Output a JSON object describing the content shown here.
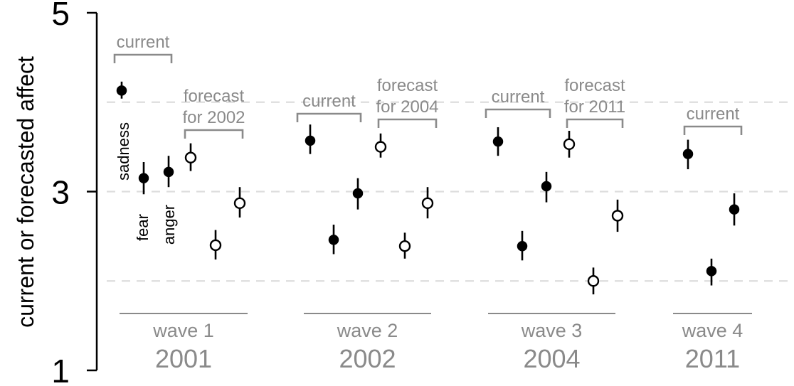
{
  "chart_data": {
    "type": "scatter",
    "title": "",
    "ylabel": "current or forecasted affect",
    "ylim": [
      1,
      5
    ],
    "yticks": [
      {
        "value": 5,
        "label": "5"
      },
      {
        "value": 3,
        "label": "3"
      },
      {
        "value": 1,
        "label": "1"
      }
    ],
    "gridlines": [
      4,
      3,
      2
    ],
    "grid": "horizontal dashed",
    "colors": {
      "current": "#000000",
      "forecast": "#ffffff",
      "annotation": "#8a8a8a",
      "grid": "#dddddd"
    },
    "emotion_labels": [
      "sadness",
      "fear",
      "anger"
    ],
    "waves": [
      {
        "wave": "wave 1",
        "year": "2001",
        "groups": [
          {
            "label": "current",
            "kind": "current",
            "points": [
              {
                "emotion": "sadness",
                "y": 4.13,
                "lo": 4.04,
                "hi": 4.23
              },
              {
                "emotion": "fear",
                "y": 3.15,
                "lo": 2.97,
                "hi": 3.33
              },
              {
                "emotion": "anger",
                "y": 3.22,
                "lo": 3.05,
                "hi": 3.4
              }
            ]
          },
          {
            "label": "forecast for 2002",
            "kind": "forecast",
            "points": [
              {
                "emotion": "sadness",
                "y": 3.38,
                "lo": 3.23,
                "hi": 3.54
              },
              {
                "emotion": "fear",
                "y": 2.4,
                "lo": 2.24,
                "hi": 2.57
              },
              {
                "emotion": "anger",
                "y": 2.87,
                "lo": 2.71,
                "hi": 3.05
              }
            ]
          }
        ]
      },
      {
        "wave": "wave 2",
        "year": "2002",
        "groups": [
          {
            "label": "current",
            "kind": "current",
            "points": [
              {
                "emotion": "sadness",
                "y": 3.57,
                "lo": 3.42,
                "hi": 3.75
              },
              {
                "emotion": "fear",
                "y": 2.46,
                "lo": 2.3,
                "hi": 2.63
              },
              {
                "emotion": "anger",
                "y": 2.98,
                "lo": 2.8,
                "hi": 3.15
              }
            ]
          },
          {
            "label": "forecast for 2004",
            "kind": "forecast",
            "points": [
              {
                "emotion": "sadness",
                "y": 3.5,
                "lo": 3.38,
                "hi": 3.65
              },
              {
                "emotion": "fear",
                "y": 2.39,
                "lo": 2.25,
                "hi": 2.54
              },
              {
                "emotion": "anger",
                "y": 2.87,
                "lo": 2.7,
                "hi": 3.05
              }
            ]
          }
        ]
      },
      {
        "wave": "wave 3",
        "year": "2004",
        "groups": [
          {
            "label": "current",
            "kind": "current",
            "points": [
              {
                "emotion": "sadness",
                "y": 3.56,
                "lo": 3.4,
                "hi": 3.72
              },
              {
                "emotion": "fear",
                "y": 2.39,
                "lo": 2.23,
                "hi": 2.56
              },
              {
                "emotion": "anger",
                "y": 3.06,
                "lo": 2.88,
                "hi": 3.22
              }
            ]
          },
          {
            "label": "forecast for 2011",
            "kind": "forecast",
            "points": [
              {
                "emotion": "sadness",
                "y": 3.53,
                "lo": 3.38,
                "hi": 3.68
              },
              {
                "emotion": "fear",
                "y": 2.0,
                "lo": 1.85,
                "hi": 2.15
              },
              {
                "emotion": "anger",
                "y": 2.73,
                "lo": 2.55,
                "hi": 2.91
              }
            ]
          }
        ]
      },
      {
        "wave": "wave 4",
        "year": "2011",
        "groups": [
          {
            "label": "current",
            "kind": "current",
            "points": [
              {
                "emotion": "sadness",
                "y": 3.42,
                "lo": 3.25,
                "hi": 3.58
              },
              {
                "emotion": "fear",
                "y": 2.11,
                "lo": 1.95,
                "hi": 2.25
              },
              {
                "emotion": "anger",
                "y": 2.8,
                "lo": 2.62,
                "hi": 2.98
              }
            ]
          }
        ]
      }
    ]
  }
}
